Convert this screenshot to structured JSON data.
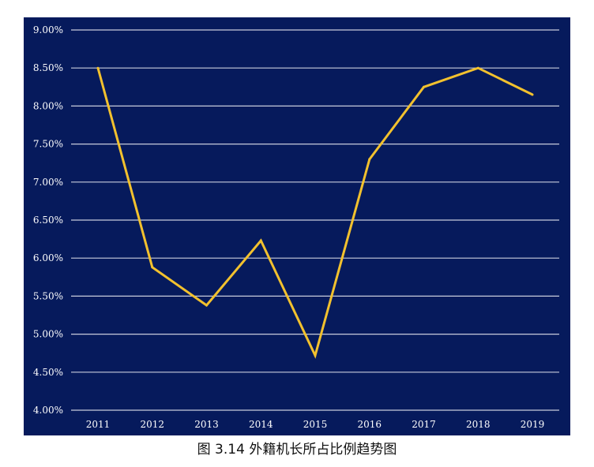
{
  "caption": "图 3.14 外籍机长所占比例趋势图",
  "colors": {
    "plot_bg": "#061a5c",
    "line": "#f2c12e",
    "grid": "#c8ccdc",
    "text": "#ffffff"
  },
  "chart_data": {
    "type": "line",
    "title": "",
    "xlabel": "",
    "ylabel": "",
    "categories": [
      "2011",
      "2012",
      "2013",
      "2014",
      "2015",
      "2016",
      "2017",
      "2018",
      "2019"
    ],
    "series": [
      {
        "values": [
          8.5,
          5.88,
          5.38,
          6.23,
          4.72,
          7.3,
          8.25,
          8.5,
          8.15
        ]
      }
    ],
    "ylim": [
      4.0,
      9.0
    ],
    "yticks": [
      4.0,
      4.5,
      5.0,
      5.5,
      6.0,
      6.5,
      7.0,
      7.5,
      8.0,
      8.5,
      9.0
    ],
    "ytick_labels": [
      "4.00%",
      "4.50%",
      "5.00%",
      "5.50%",
      "6.00%",
      "6.50%",
      "7.00%",
      "7.50%",
      "8.00%",
      "8.50%",
      "9.00%"
    ],
    "grid": true,
    "legend": "none"
  }
}
